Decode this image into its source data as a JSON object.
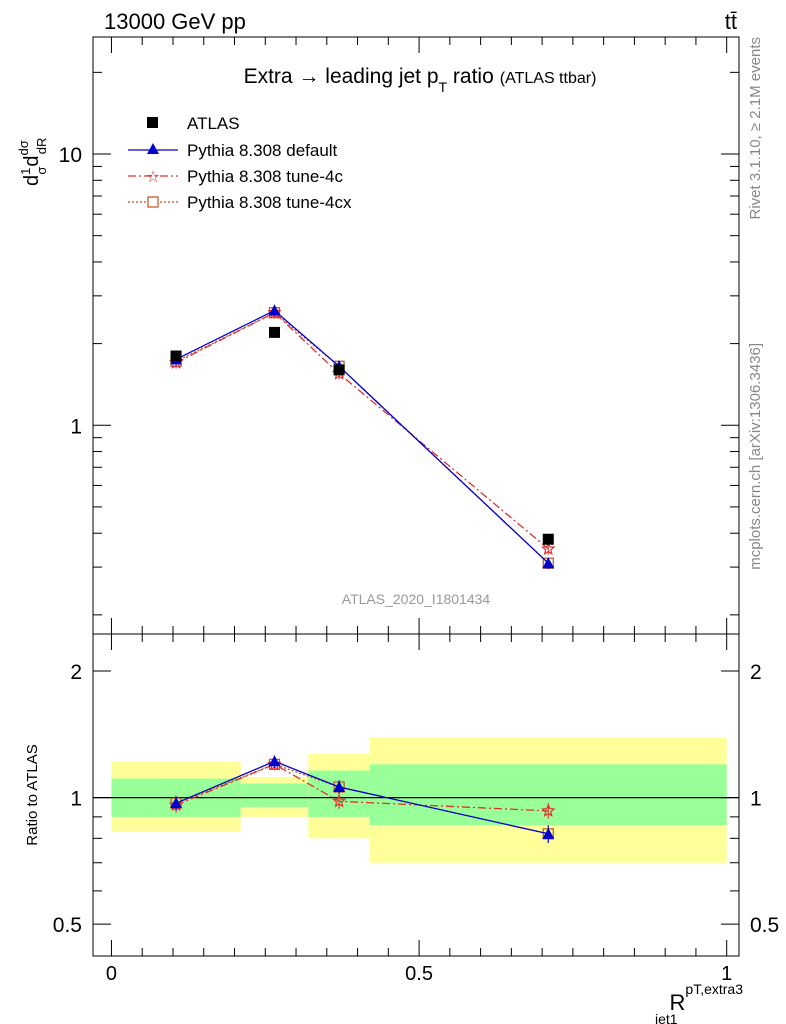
{
  "header": {
    "energy_label": "13000 GeV pp",
    "process_label": "tt̄"
  },
  "side_labels": {
    "rivet": "Rivet 3.1.10, ≥ 2.1M events",
    "mcplots": "mcplots.cern.ch [arXiv:1306.3436]"
  },
  "chart_data": {
    "type": "line",
    "title": {
      "main": "Extra → leading jet p",
      "sub": "T",
      "tail": " ratio",
      "note": "(ATLAS ttbar)"
    },
    "analysis_id": "ATLAS_2020_I1801434",
    "ylabel_top": "dσ/dR normalized",
    "ylabel_bottom": "Ratio to ATLAS",
    "xlabel": {
      "base": "R",
      "sup": "pT,extra3",
      "sub": "jet1"
    },
    "x_range": [
      -0.03,
      1.02
    ],
    "y_range_top": [
      0.17,
      27
    ],
    "y_scale_top": "log",
    "y_range_ratio": [
      0.42,
      2.45
    ],
    "y_scale_ratio": "log",
    "x_ticks": [
      {
        "value": 0,
        "label": "0"
      },
      {
        "value": 0.5,
        "label": "0.5"
      },
      {
        "value": 1,
        "label": "1"
      }
    ],
    "y_ticks_top": [
      {
        "value": 1,
        "label": "1"
      },
      {
        "value": 10,
        "label": "10"
      }
    ],
    "y_ticks_ratio": [
      {
        "value": 0.5,
        "label": "0.5"
      },
      {
        "value": 1,
        "label": "1"
      },
      {
        "value": 2,
        "label": "2"
      }
    ],
    "x_bins": [
      [
        0,
        0.21
      ],
      [
        0.21,
        0.32
      ],
      [
        0.32,
        0.42
      ],
      [
        0.42,
        1.0
      ]
    ],
    "x_centers": [
      0.105,
      0.265,
      0.37,
      0.71
    ],
    "reference": {
      "name": "ATLAS",
      "values": [
        1.8,
        2.2,
        1.6,
        0.38
      ],
      "band_stat": [
        [
          0.9,
          1.11
        ],
        [
          0.95,
          1.08
        ],
        [
          0.9,
          1.16
        ],
        [
          0.86,
          1.2
        ]
      ],
      "band_total": [
        [
          0.83,
          1.22
        ],
        [
          0.9,
          1.12
        ],
        [
          0.8,
          1.27
        ],
        [
          0.7,
          1.39
        ]
      ]
    },
    "series": [
      {
        "name": "Pythia 8.308 default",
        "color": "#0000cc",
        "marker": "triangle",
        "dash": "solid",
        "values": [
          1.75,
          2.65,
          1.65,
          0.31
        ],
        "ratio": [
          0.97,
          1.22,
          1.06,
          0.82
        ],
        "ratio_err": 0.04
      },
      {
        "name": "Pythia 8.308 tune-4c",
        "color": "#e03030",
        "marker": "star",
        "dash": "dashdot",
        "values": [
          1.7,
          2.6,
          1.55,
          0.35
        ],
        "ratio": [
          0.96,
          1.2,
          0.98,
          0.93
        ],
        "ratio_err": 0.04
      },
      {
        "name": "Pythia 8.308 tune-4cx",
        "color": "#c05020",
        "marker": "square",
        "dash": "dotted",
        "values": [
          1.72,
          2.6,
          1.65,
          0.31
        ],
        "ratio": [
          0.97,
          1.2,
          1.06,
          0.82
        ],
        "ratio_err": 0.04
      }
    ],
    "band_colors": {
      "stat": "#99ff99",
      "total": "#ffff99"
    },
    "legend_position": "top-left",
    "grid": false
  }
}
